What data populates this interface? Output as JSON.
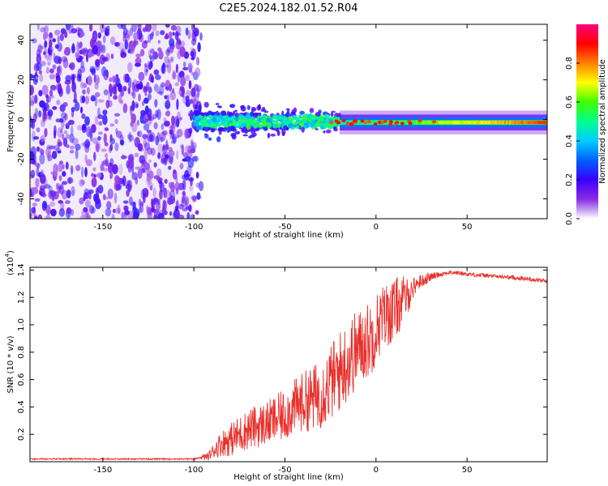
{
  "title": "C2E5.2024.182.01.52.R04",
  "chart_data": [
    {
      "type": "heatmap",
      "title": "C2E5.2024.182.01.52.R04",
      "xlabel": "Height of straight line (km)",
      "ylabel": "Frequency (Hz)",
      "xlim": [
        -190,
        94
      ],
      "ylim": [
        -50,
        48
      ],
      "xticks": [
        -150,
        -100,
        -50,
        0,
        50
      ],
      "xtick_labels": [
        "-150",
        "-100",
        "-50",
        "0",
        "50"
      ],
      "yticks": [
        -40,
        -20,
        0,
        20,
        40
      ],
      "ytick_labels": [
        "-40",
        "-20",
        "0",
        "20",
        "40"
      ],
      "colorbar": {
        "label": "Normalized spectral amplitude",
        "range": [
          0,
          1
        ],
        "ticks": [
          0.0,
          0.2,
          0.4,
          0.6,
          0.8
        ],
        "tick_labels": [
          "0.0",
          "0.2",
          "0.4",
          "0.6",
          "0.8"
        ],
        "colors": [
          "#ffffff",
          "#8a2be2",
          "#3a00ff",
          "#0040ff",
          "#00ccff",
          "#00ff80",
          "#40ff00",
          "#ffff00",
          "#ff8000",
          "#ff0000",
          "#ff0080"
        ]
      },
      "regions": [
        {
          "name": "noise",
          "x_range": [
            -190,
            -100
          ],
          "freq_range": [
            -50,
            48
          ],
          "amplitude": 0.15
        },
        {
          "name": "transition",
          "x_range": [
            -100,
            -20
          ],
          "freq_center": -1,
          "freq_halfwidth": 10,
          "amplitude": 0.45
        },
        {
          "name": "signal",
          "x_range": [
            -20,
            94
          ],
          "freq_center": -1.5,
          "freq_halfwidth": 4,
          "amplitude": 0.85
        }
      ]
    },
    {
      "type": "line",
      "xlabel": "Height of straight line (km)",
      "ylabel": "SNR (10 * v/v)",
      "multiplier_label": "(x10",
      "multiplier_exp": "4",
      "multiplier_close": ")",
      "xlim": [
        -190,
        94
      ],
      "ylim": [
        0,
        1.42
      ],
      "xticks": [
        -150,
        -100,
        -50,
        0,
        50
      ],
      "xtick_labels": [
        "-150",
        "-100",
        "-50",
        "0",
        "50"
      ],
      "yticks": [
        0.2,
        0.4,
        0.6,
        0.8,
        1.0,
        1.2,
        1.4
      ],
      "ytick_labels": [
        "0.2",
        "0.4",
        "0.6",
        "0.8",
        "1.0",
        "1.2",
        "1.4"
      ],
      "color": "#e8302c",
      "series": [
        {
          "name": "SNR",
          "x": [
            -190,
            -150,
            -120,
            -100,
            -92,
            -88,
            -84,
            -80,
            -75,
            -70,
            -65,
            -60,
            -55,
            -50,
            -45,
            -40,
            -35,
            -30,
            -25,
            -22,
            -20,
            -18,
            -15,
            -12,
            -10,
            -8,
            -5,
            -2,
            0,
            3,
            6,
            10,
            12,
            15,
            18,
            20,
            22,
            25,
            30,
            35,
            40,
            45,
            50,
            60,
            70,
            80,
            94
          ],
          "y": [
            0.02,
            0.02,
            0.02,
            0.02,
            0.04,
            0.1,
            0.14,
            0.16,
            0.2,
            0.24,
            0.26,
            0.28,
            0.31,
            0.34,
            0.4,
            0.44,
            0.46,
            0.5,
            0.58,
            0.62,
            0.66,
            0.7,
            0.74,
            0.8,
            0.82,
            0.86,
            0.88,
            0.92,
            0.98,
            1.04,
            1.08,
            1.1,
            1.14,
            1.18,
            1.22,
            1.26,
            1.3,
            1.32,
            1.35,
            1.37,
            1.38,
            1.38,
            1.37,
            1.36,
            1.35,
            1.34,
            1.32
          ],
          "noise_amplitude": [
            0,
            0,
            0,
            0,
            0.03,
            0.07,
            0.1,
            0.12,
            0.14,
            0.15,
            0.16,
            0.16,
            0.18,
            0.19,
            0.2,
            0.22,
            0.24,
            0.26,
            0.28,
            0.3,
            0.3,
            0.3,
            0.3,
            0.3,
            0.28,
            0.28,
            0.28,
            0.28,
            0.26,
            0.25,
            0.24,
            0.24,
            0.22,
            0.18,
            0.12,
            0.08,
            0.06,
            0.05,
            0.03,
            0.02,
            0.015,
            0.015,
            0.015,
            0.015,
            0.015,
            0.015,
            0.015
          ]
        }
      ]
    }
  ]
}
